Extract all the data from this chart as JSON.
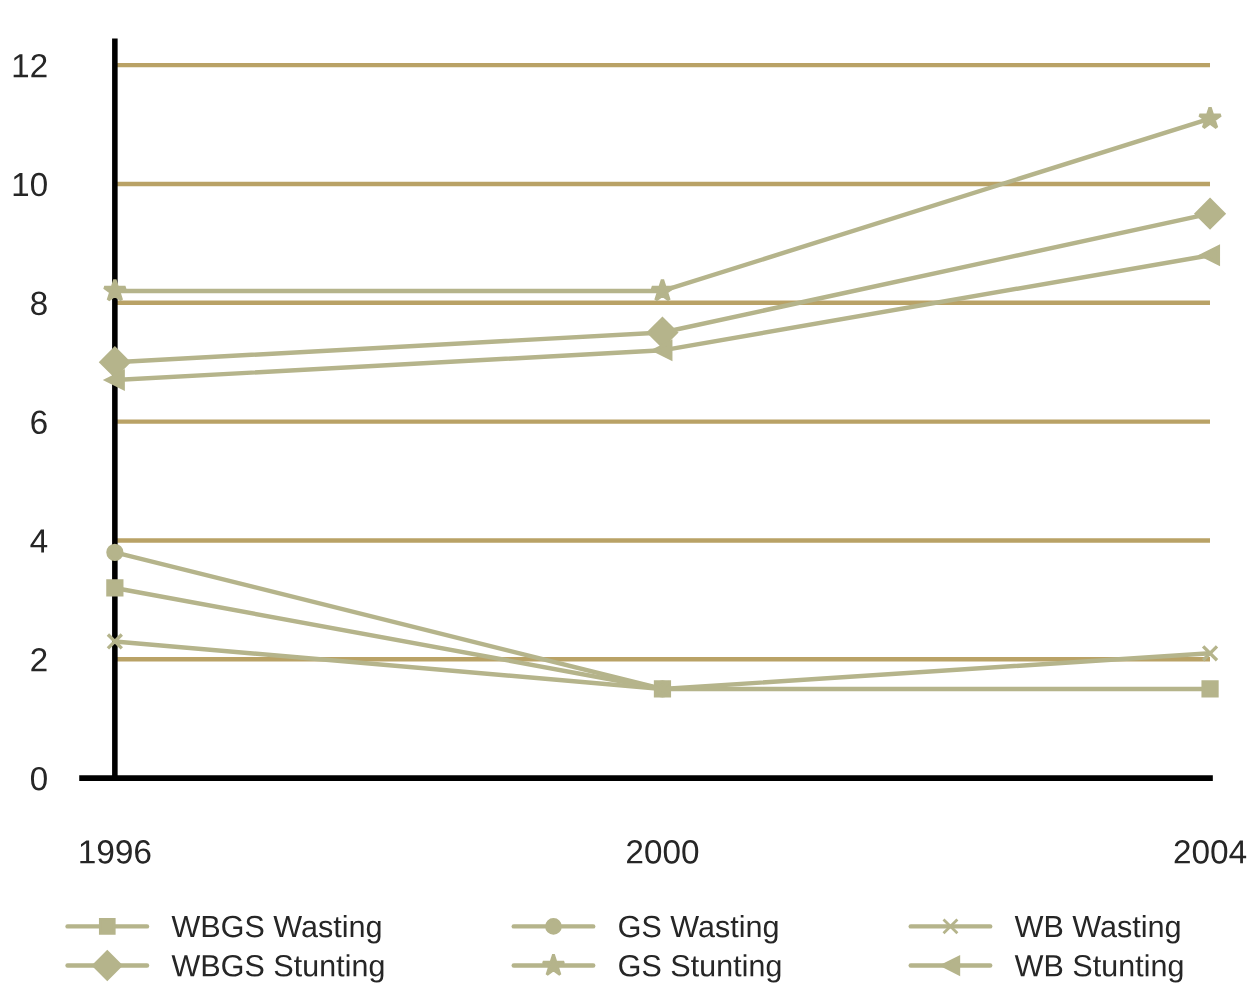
{
  "chart_data": {
    "type": "line",
    "categories": [
      "1996",
      "2000",
      "2004"
    ],
    "ylim": [
      0,
      12.4
    ],
    "yticks": [
      0,
      2,
      4,
      6,
      8,
      10,
      12
    ],
    "grid": "y",
    "legend": "bottom",
    "line_style": "solid",
    "series": [
      {
        "name": "WBGS Wasting",
        "color": "#b5b48b",
        "marker": "square",
        "values": [
          3.2,
          1.5,
          1.5
        ]
      },
      {
        "name": "GS Wasting",
        "color": "#b5b48b",
        "marker": "circle",
        "values": [
          3.8,
          1.5,
          null
        ]
      },
      {
        "name": "WB Wasting",
        "color": "#b5b48b",
        "marker": "cross",
        "values": [
          2.3,
          1.5,
          2.1
        ]
      },
      {
        "name": "WBGS Stunting",
        "color": "#b5b48b",
        "marker": "diamond",
        "values": [
          7.0,
          7.5,
          9.5
        ]
      },
      {
        "name": "GS Stunting",
        "color": "#b5b48b",
        "marker": "star",
        "values": [
          8.2,
          8.2,
          11.1
        ]
      },
      {
        "name": "WB Stunting",
        "color": "#b5b48b",
        "marker": "triangle",
        "values": [
          6.7,
          7.2,
          8.8
        ]
      }
    ]
  }
}
